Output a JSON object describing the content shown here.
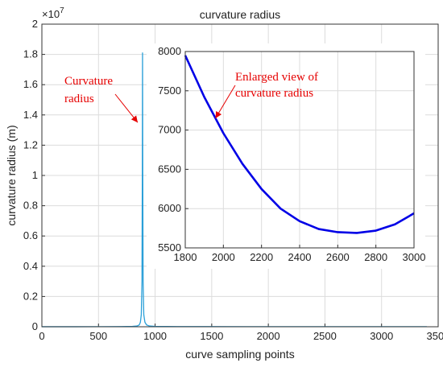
{
  "chart_data": [
    {
      "type": "line",
      "title": "curvature radius",
      "xlabel": "curve sampling points",
      "ylabel": "curvature radius (m)",
      "xlim": [
        0,
        3500
      ],
      "ylim": [
        0,
        2
      ],
      "y_exponent_label": "×10",
      "y_exponent": "7",
      "x_ticks": [
        "0",
        "500",
        "1000",
        "1500",
        "2000",
        "2500",
        "3000",
        "3500"
      ],
      "y_ticks": [
        "0",
        "0.2",
        "0.4",
        "0.6",
        "0.8",
        "1",
        "1.2",
        "1.4",
        "1.6",
        "1.8",
        "2"
      ],
      "grid": true,
      "series": [
        {
          "color": "#2a9fd8",
          "points": [
            [
              0,
              0.0003
            ],
            [
              300,
              0.0004
            ],
            [
              500,
              0.0006
            ],
            [
              700,
              0.0012
            ],
            [
              800,
              0.0025
            ],
            [
              840,
              0.005
            ],
            [
              860,
              0.012
            ],
            [
              870,
              0.03
            ],
            [
              878,
              0.08
            ],
            [
              884,
              0.3
            ],
            [
              887,
              1.0
            ],
            [
              889,
              1.81
            ],
            [
              891,
              1.0
            ],
            [
              894,
              0.3
            ],
            [
              900,
              0.08
            ],
            [
              910,
              0.03
            ],
            [
              925,
              0.012
            ],
            [
              950,
              0.005
            ],
            [
              1000,
              0.0025
            ],
            [
              1200,
              0.001
            ],
            [
              1800,
              0.0008
            ],
            [
              2400,
              0.0006
            ],
            [
              3000,
              0.0006
            ],
            [
              3400,
              0.0006
            ]
          ]
        }
      ],
      "annotation": {
        "text_line1": "Curvature",
        "text_line2": "radius",
        "color": "#e60000",
        "points_to": [
          889,
          1.35
        ]
      }
    },
    {
      "type": "line",
      "title": "",
      "xlim": [
        1800,
        3000
      ],
      "ylim": [
        5500,
        8000
      ],
      "x_ticks": [
        "1800",
        "2000",
        "2200",
        "2400",
        "2600",
        "2800",
        "3000"
      ],
      "y_ticks": [
        "5500",
        "6000",
        "6500",
        "7000",
        "7500",
        "8000"
      ],
      "grid": true,
      "series": [
        {
          "color": "#0000e6",
          "points": [
            [
              1800,
              7950
            ],
            [
              1900,
              7420
            ],
            [
              2000,
              6960
            ],
            [
              2100,
              6570
            ],
            [
              2200,
              6250
            ],
            [
              2300,
              6000
            ],
            [
              2400,
              5840
            ],
            [
              2500,
              5740
            ],
            [
              2600,
              5700
            ],
            [
              2700,
              5690
            ],
            [
              2800,
              5720
            ],
            [
              2900,
              5800
            ],
            [
              3000,
              5940
            ]
          ]
        }
      ],
      "annotation": {
        "text_line1": "Enlarged view of",
        "text_line2": "curvature radius",
        "color": "#e60000",
        "points_to": [
          1950,
          7150
        ]
      }
    }
  ]
}
